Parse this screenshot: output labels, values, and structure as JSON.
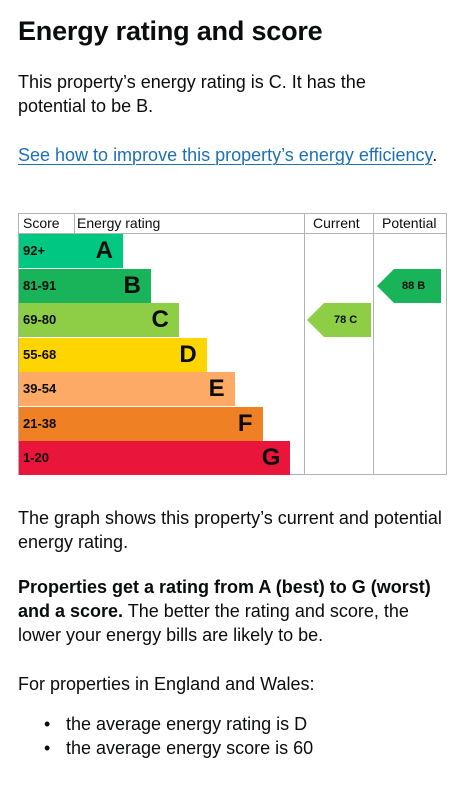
{
  "heading": "Energy rating and score",
  "intro": "This property’s energy rating is C. It has the potential to be B.",
  "improve_link": "See how to improve this property’s energy efficiency",
  "improve_link_suffix": ".",
  "chart": {
    "headers": {
      "score": "Score",
      "rating": "Energy rating",
      "current": "Current",
      "potential": "Potential"
    },
    "bands": [
      {
        "range": "92+",
        "letter": "A",
        "color": "#00c781"
      },
      {
        "range": "81-91",
        "letter": "B",
        "color": "#19b459"
      },
      {
        "range": "69-80",
        "letter": "C",
        "color": "#8dce46"
      },
      {
        "range": "55-68",
        "letter": "D",
        "color": "#ffd500"
      },
      {
        "range": "39-54",
        "letter": "E",
        "color": "#fcaa65"
      },
      {
        "range": "21-38",
        "letter": "F",
        "color": "#ef8023"
      },
      {
        "range": "1-20",
        "letter": "G",
        "color": "#e9153b"
      }
    ],
    "current": {
      "label": "78 C",
      "score": 78,
      "band": "C",
      "color": "#8dce46"
    },
    "potential": {
      "label": "88 B",
      "score": 88,
      "band": "B",
      "color": "#19b459"
    }
  },
  "graph_description": "The graph shows this property’s current and potential energy rating.",
  "rating_info_bold": "Properties get a rating from A (best) to G (worst) and a score.",
  "rating_info_rest": " The better the rating and score, the lower your energy bills are likely to be.",
  "average_intro": "For properties in England and Wales:",
  "averages": [
    "the average energy rating is D",
    "the average energy score is 60"
  ]
}
